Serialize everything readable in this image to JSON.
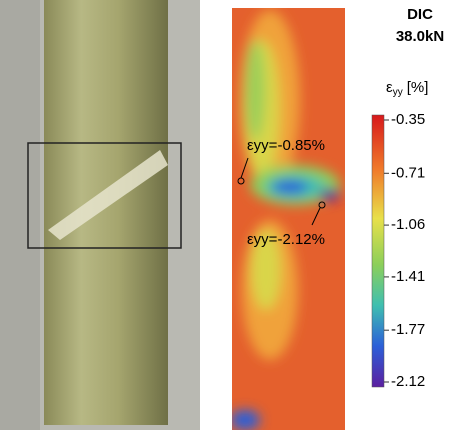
{
  "header": {
    "method": "DIC",
    "load": "38.0kN"
  },
  "colorbar": {
    "symbol": "ε",
    "subscript": "yy",
    "unit": "[%]",
    "ticks": [
      -0.35,
      -0.71,
      -1.06,
      -1.41,
      -1.77,
      -2.12
    ]
  },
  "annotations": [
    "εyy=-0.85%",
    "εyy=-2.12%"
  ]
}
